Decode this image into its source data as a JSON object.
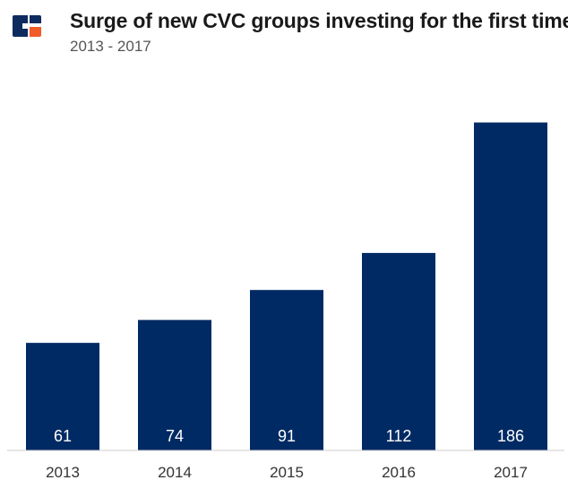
{
  "header": {
    "title": "Surge of new CVC groups investing for the first time",
    "subtitle": "2013 - 2017"
  },
  "colors": {
    "bar": "#002a63",
    "axis": "#cccccc",
    "logo_dark": "#0d2b5e",
    "logo_accent": "#f15a29"
  },
  "logo": {
    "icon": "cb-insights-logo-icon"
  },
  "chart_data": {
    "type": "bar",
    "title": "Surge of new CVC groups investing for the first time",
    "subtitle": "2013 - 2017",
    "categories": [
      "2013",
      "2014",
      "2015",
      "2016",
      "2017"
    ],
    "values": [
      61,
      74,
      91,
      112,
      186
    ],
    "data_labels": [
      "61",
      "74",
      "91",
      "112",
      "186"
    ],
    "xlabel": "",
    "ylabel": "",
    "ylim": [
      0,
      200
    ],
    "grid": false,
    "legend": "none"
  }
}
